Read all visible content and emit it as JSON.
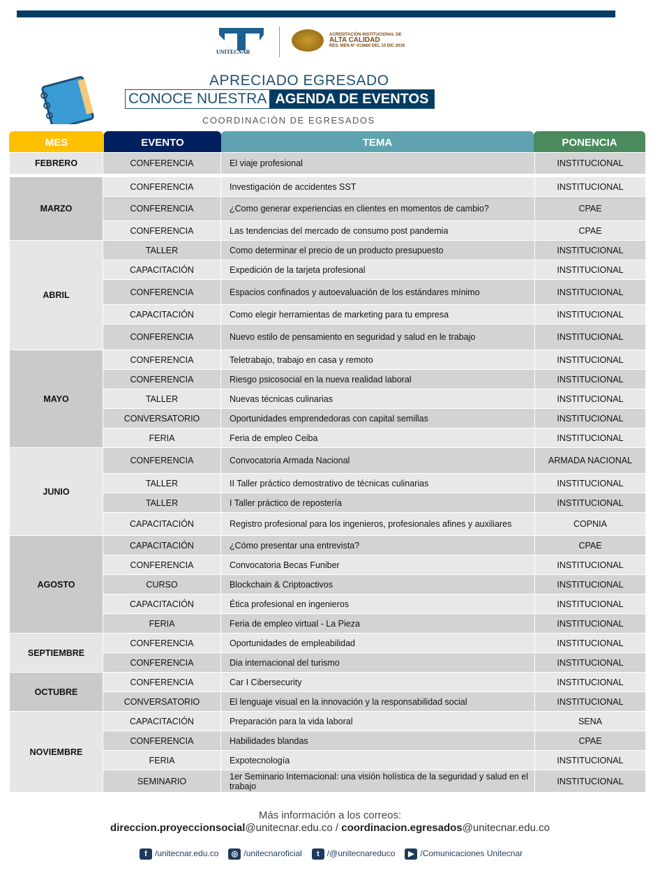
{
  "header": {
    "brand": "UNITECNAR",
    "accreditation_line1": "ACREDITACIÓN INSTITUCIONAL DE",
    "accreditation_line2": "ALTA CALIDAD",
    "accreditation_line3": "RES. MEN N° 013660 DEL 10 DIC 2019",
    "title1": "APRECIADO EGRESADO",
    "title2a": "CONOCE NUESTRA",
    "title2b": "AGENDA DE EVENTOS",
    "subtitle": "COORDINACIÓN DE EGRESADOS"
  },
  "columns": {
    "mes": "MES",
    "evento": "EVENTO",
    "tema": "TEMA",
    "ponencia": "PONENCIA"
  },
  "colors": {
    "mes": "#ffc000",
    "evento": "#002060",
    "tema": "#5fa3b0",
    "ponencia": "#4a8a5c",
    "accent": "#033c63"
  },
  "months": [
    {
      "name": "FEBRERO",
      "events": [
        [
          "CONFERENCIA",
          "El viaje  profesional",
          "INSTITUCIONAL"
        ]
      ]
    },
    {
      "name": "MARZO",
      "events": [
        [
          "CONFERENCIA",
          "Investigación  de accidentes SST",
          "INSTITUCIONAL"
        ],
        [
          "CONFERENCIA",
          "¿Como generar  experiencias en clientes en momentos de cambio?",
          "CPAE"
        ],
        [
          "CONFERENCIA",
          "Las tendencias del mercado de consumo post pandemia",
          "CPAE"
        ]
      ]
    },
    {
      "name": "ABRIL",
      "events": [
        [
          "TALLER",
          "Como determinar  el precio de un producto presupuesto",
          "INSTITUCIONAL"
        ],
        [
          "CAPACITACIÓN",
          "Expedición de la tarjeta profesional",
          "INSTITUCIONAL"
        ],
        [
          "CONFERENCIA",
          "Espacios confinados  y autoevaluación  de los estándares mínimo",
          "INSTITUCIONAL"
        ],
        [
          "CAPACITACIÓN",
          "Como elegir herramientas  de marketing para tu empresa",
          "INSTITUCIONAL"
        ],
        [
          "CONFERENCIA",
          "Nuevo  estilo de pensamiento en seguridad  y salud en le trabajo",
          "INSTITUCIONAL"
        ]
      ]
    },
    {
      "name": "MAYO",
      "events": [
        [
          "CONFERENCIA",
          "Teletrabajo,  trabajo en casa y remoto",
          "INSTITUCIONAL"
        ],
        [
          "CONFERENCIA",
          "Riesgo psicosocial en la nueva  realidad laboral",
          "INSTITUCIONAL"
        ],
        [
          "TALLER",
          "Nuevas  técnicas culinarias",
          "INSTITUCIONAL"
        ],
        [
          "CONVERSATORIO",
          "Oportunidades  emprendedoras  con capital semillas",
          "INSTITUCIONAL"
        ],
        [
          "FERIA",
          "Feria de empleo Ceiba",
          "INSTITUCIONAL"
        ]
      ]
    },
    {
      "name": "JUNIO",
      "events": [
        [
          "CONFERENCIA",
          "Convocatoria  Armada Nacional",
          "ARMADA NACIONAL"
        ],
        [
          "TALLER",
          "II Taller  práctico demostrativo  de técnicas culinarias",
          "INSTITUCIONAL"
        ],
        [
          "TALLER",
          "I Taller  práctico de repostería",
          "INSTITUCIONAL"
        ],
        [
          "CAPACITACIÓN",
          "Registro profesional  para los ingenieros,  profesionales afines    y auxiliares",
          "COPNIA"
        ]
      ]
    },
    {
      "name": "AGOSTO",
      "events": [
        [
          "CAPACITACIÓN",
          "¿Cómo presentar una entrevista?",
          "CPAE"
        ],
        [
          "CONFERENCIA",
          "Convocatoria  Becas Funiber",
          "INSTITUCIONAL"
        ],
        [
          "CURSO",
          "Blockchain & Criptoactivos",
          "INSTITUCIONAL"
        ],
        [
          "CAPACITACIÓN",
          "Ética profesional  en ingenieros",
          "INSTITUCIONAL"
        ],
        [
          "FERIA",
          "Feria de empleo virtual  - La Pieza",
          "INSTITUCIONAL"
        ]
      ]
    },
    {
      "name": "SEPTIEMBRE",
      "events": [
        [
          "CONFERENCIA",
          "Oportunidades  de empleabilidad",
          "INSTITUCIONAL"
        ],
        [
          "CONFERENCIA",
          "Dia internacional  del turismo",
          "INSTITUCIONAL"
        ]
      ]
    },
    {
      "name": "OCTUBRE",
      "events": [
        [
          "CONFERENCIA",
          "Car I Cibersecurity",
          "INSTITUCIONAL"
        ],
        [
          "CONVERSATORIO",
          "El lenguaje visual  en la innovación  y la responsabilidad  social",
          "INSTITUCIONAL"
        ]
      ]
    },
    {
      "name": "NOVIEMBRE",
      "events": [
        [
          "CAPACITACIÓN",
          "Preparación  para la vida laboral",
          "SENA"
        ],
        [
          "CONFERENCIA",
          "Habilidades  blandas",
          "CPAE"
        ],
        [
          "FERIA",
          "Expotecnología",
          "INSTITUCIONAL"
        ],
        [
          "SEMINARIO",
          "1er Seminario Internacional:  una visión  holística de la seguridad  y salud en el trabajo",
          "INSTITUCIONAL"
        ]
      ]
    }
  ],
  "footer": {
    "info": "Más información a los correos:",
    "email1_user": "direccion.proyeccionsocial",
    "email1_domain": "@unitecnar.edu.co",
    "sep": " / ",
    "email2_user": "coordinacion.egresados",
    "email2_domain": "@unitecnar.edu.co",
    "social": [
      {
        "icon": "facebook-icon",
        "glyph": "f",
        "label": "/unitecnar.edu.co"
      },
      {
        "icon": "instagram-icon",
        "glyph": "◎",
        "label": "/unitecnaroficial"
      },
      {
        "icon": "twitter-icon",
        "glyph": "t",
        "label": "/@unitecnareduco"
      },
      {
        "icon": "youtube-icon",
        "glyph": "▶",
        "label": "/Comunicaciones Unitecnar"
      }
    ]
  }
}
